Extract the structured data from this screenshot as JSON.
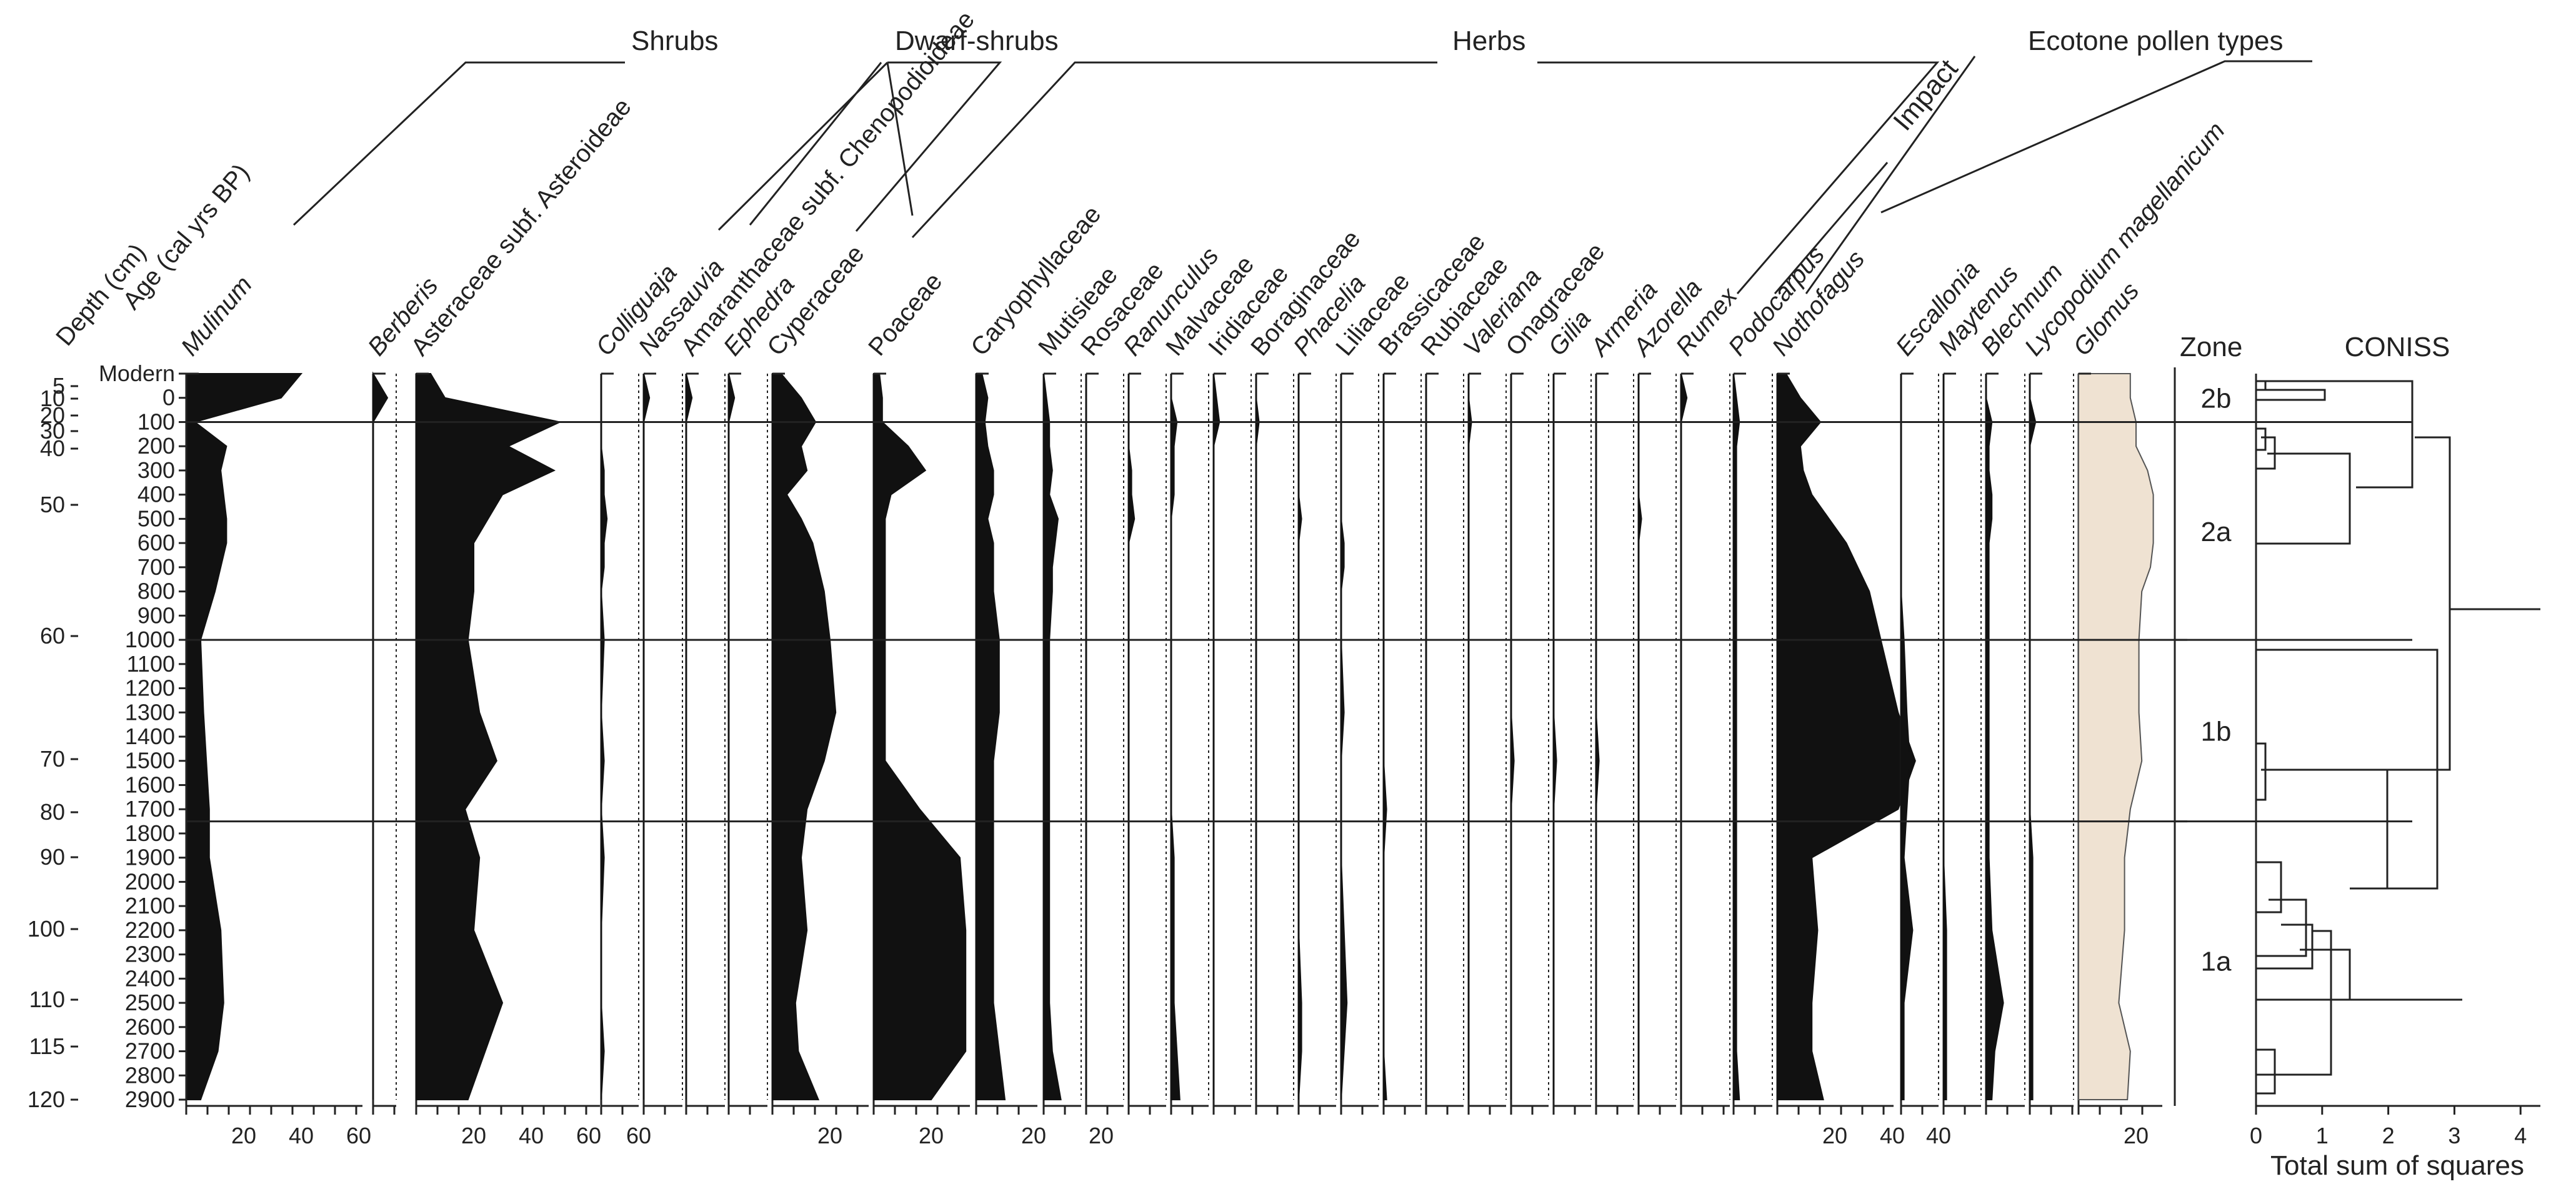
{
  "chart_data": {
    "type": "area",
    "subtype": "pollen-diagram",
    "depth_axis_label": "Depth (cm)",
    "age_axis_label": "Age (cal yrs BP)",
    "depth_ticks": [
      "5",
      "10",
      "20",
      "30",
      "40",
      "50",
      "60",
      "70",
      "80",
      "90",
      "100",
      "110",
      "115",
      "120"
    ],
    "depth_values": [
      5,
      10,
      20,
      30,
      40,
      50,
      60,
      70,
      80,
      90,
      100,
      110,
      115,
      120
    ],
    "age_ticks": [
      "Modern",
      "0",
      "100",
      "200",
      "300",
      "400",
      "500",
      "600",
      "700",
      "800",
      "900",
      "1000",
      "1100",
      "1200",
      "1300",
      "1400",
      "1500",
      "1600",
      "1700",
      "1800",
      "1900",
      "2000",
      "2100",
      "2200",
      "2300",
      "2400",
      "2500",
      "2600",
      "2700",
      "2800",
      "2900"
    ],
    "age_values": [
      -100,
      0,
      100,
      200,
      300,
      400,
      500,
      600,
      700,
      800,
      900,
      1000,
      1100,
      1200,
      1300,
      1400,
      1500,
      1600,
      1700,
      1800,
      1900,
      2000,
      2100,
      2200,
      2300,
      2400,
      2500,
      2600,
      2700,
      2800,
      2900
    ],
    "sample_ages": [
      -100,
      0,
      100,
      200,
      300,
      400,
      500,
      600,
      700,
      800,
      1000,
      1300,
      1500,
      1700,
      1900,
      2200,
      2500,
      2700,
      2900
    ],
    "zone_label": "Zone",
    "zones": [
      {
        "name": "2b",
        "age_top": -100,
        "age_bottom": 100
      },
      {
        "name": "2a",
        "age_top": 100,
        "age_bottom": 1000
      },
      {
        "name": "1b",
        "age_top": 1000,
        "age_bottom": 1750
      },
      {
        "name": "1a",
        "age_top": 1750,
        "age_bottom": 2900
      }
    ],
    "zone_boundary_ages": [
      100,
      1000,
      1750
    ],
    "groups": [
      {
        "name": "Shrubs"
      },
      {
        "name": "Dwarf-shrubs"
      },
      {
        "name": "Herbs"
      },
      {
        "name": "Impact"
      },
      {
        "name": "Ecotone pollen types"
      }
    ],
    "series": [
      {
        "name": "Mulinum",
        "italic": true,
        "max": 60,
        "ticks": [
          "20",
          "40",
          "60"
        ],
        "tick_values": [
          20,
          40,
          60
        ],
        "values": [
          40,
          33,
          3,
          14,
          12,
          13,
          14,
          14,
          12,
          10,
          5,
          6,
          7,
          8,
          8,
          12,
          13,
          11,
          5
        ]
      },
      {
        "name": "Berberis",
        "italic": true,
        "max": 5,
        "ticks": [],
        "tick_values": [],
        "values": [
          0,
          5,
          0,
          0,
          0,
          0,
          0,
          0,
          0,
          0,
          0,
          0,
          0,
          0,
          0,
          0,
          0,
          0,
          0
        ]
      },
      {
        "name": "Asteraceae subf. Asteroideae",
        "italic": false,
        "max": 60,
        "ticks": [
          "20",
          "40",
          "60"
        ],
        "tick_values": [
          20,
          40,
          60
        ],
        "values": [
          5,
          10,
          50,
          32,
          48,
          30,
          25,
          20,
          20,
          20,
          18,
          22,
          28,
          17,
          22,
          20,
          30,
          24,
          18
        ]
      },
      {
        "name": "Colliguaja",
        "italic": true,
        "max": 5,
        "ticks": [
          "60"
        ],
        "tick_values": [
          60
        ],
        "values": [
          0,
          0,
          0,
          0,
          1,
          1,
          2,
          1,
          1,
          0,
          1,
          0,
          1,
          0,
          1,
          0,
          0,
          1,
          0
        ]
      },
      {
        "name": "Nassauvia",
        "italic": true,
        "max": 5,
        "ticks": [],
        "tick_values": [],
        "values": [
          0,
          2,
          0,
          0,
          0,
          0,
          0,
          0,
          0,
          0,
          0,
          0,
          0,
          0,
          0,
          0,
          0,
          0,
          0
        ]
      },
      {
        "name": "Amaranthaceae subf. Chenopodioideae",
        "italic": false,
        "max": 5,
        "ticks": [],
        "tick_values": [],
        "values": [
          0,
          2,
          0,
          0,
          0,
          0,
          0,
          0,
          0,
          0,
          0,
          0,
          0,
          0,
          0,
          0,
          0,
          0,
          0
        ]
      },
      {
        "name": "Ephedra",
        "italic": true,
        "max": 5,
        "ticks": [],
        "tick_values": [],
        "values": [
          0,
          2,
          0,
          0,
          0,
          0,
          0,
          0,
          0,
          0,
          0,
          0,
          0,
          0,
          0,
          0,
          0,
          0,
          0
        ]
      },
      {
        "name": "Cyperaceae",
        "italic": false,
        "max": 30,
        "ticks": [
          "20"
        ],
        "tick_values": [
          20
        ],
        "values": [
          3,
          10,
          15,
          10,
          12,
          5,
          10,
          14,
          16,
          18,
          20,
          22,
          18,
          12,
          10,
          12,
          8,
          9,
          16
        ]
      },
      {
        "name": "Poaceae",
        "italic": false,
        "max": 30,
        "ticks": [
          "20"
        ],
        "tick_values": [
          20
        ],
        "values": [
          2,
          3,
          3,
          12,
          18,
          6,
          4,
          4,
          4,
          4,
          4,
          4,
          4,
          16,
          30,
          32,
          32,
          32,
          20
        ]
      },
      {
        "name": "Caryophyllaceae",
        "italic": false,
        "max": 30,
        "ticks": [
          "20"
        ],
        "tick_values": [
          20
        ],
        "values": [
          2,
          4,
          3,
          4,
          6,
          6,
          4,
          6,
          6,
          6,
          8,
          8,
          6,
          6,
          6,
          6,
          6,
          8,
          10
        ]
      },
      {
        "name": "Mutisieae",
        "italic": false,
        "max": 30,
        "ticks": [
          "20"
        ],
        "tick_values": [
          20
        ],
        "values": [
          0,
          1,
          2,
          2,
          3,
          2,
          5,
          4,
          3,
          3,
          2,
          2,
          2,
          2,
          2,
          2,
          2,
          3,
          6
        ]
      },
      {
        "name": "Rosaceae",
        "italic": false,
        "max": 5,
        "ticks": [],
        "tick_values": [],
        "values": [
          0,
          0,
          0,
          0,
          0,
          0,
          0,
          0,
          0,
          0,
          0,
          0,
          0,
          0,
          0,
          0,
          0,
          0,
          0
        ]
      },
      {
        "name": "Ranunculus",
        "italic": true,
        "max": 5,
        "ticks": [],
        "tick_values": [],
        "values": [
          0,
          0,
          0,
          0,
          1,
          1,
          2,
          0,
          0,
          0,
          0,
          0,
          0,
          0,
          0,
          0,
          0,
          0,
          0
        ]
      },
      {
        "name": "Malvaceae",
        "italic": false,
        "max": 5,
        "ticks": [],
        "tick_values": [],
        "values": [
          0,
          0,
          2,
          1,
          1,
          1,
          0,
          0,
          0,
          0,
          0,
          0,
          0,
          0,
          1,
          1,
          1,
          2,
          3
        ]
      },
      {
        "name": "Iridiaceae",
        "italic": false,
        "max": 5,
        "ticks": [],
        "tick_values": [],
        "values": [
          0,
          1,
          2,
          0,
          0,
          0,
          0,
          0,
          0,
          0,
          0,
          0,
          0,
          0,
          0,
          0,
          0,
          0,
          0
        ]
      },
      {
        "name": "Boraginaceae",
        "italic": false,
        "max": 5,
        "ticks": [],
        "tick_values": [],
        "values": [
          0,
          0,
          1,
          0,
          0,
          0,
          0,
          0,
          0,
          0,
          0,
          0,
          0,
          0,
          0,
          0,
          0,
          0,
          0
        ]
      },
      {
        "name": "Phacelia",
        "italic": true,
        "max": 5,
        "ticks": [],
        "tick_values": [],
        "values": [
          0,
          0,
          0,
          0,
          0,
          0,
          1,
          0,
          0,
          0,
          0,
          0,
          0,
          0,
          0,
          0,
          1,
          1,
          0
        ]
      },
      {
        "name": "Liliaceae",
        "italic": false,
        "max": 5,
        "ticks": [],
        "tick_values": [],
        "values": [
          0,
          0,
          0,
          0,
          0,
          0,
          0,
          1,
          1,
          0,
          0,
          1,
          0,
          0,
          0,
          1,
          2,
          1,
          0
        ]
      },
      {
        "name": "Brassicaceae",
        "italic": false,
        "max": 5,
        "ticks": [],
        "tick_values": [],
        "values": [
          0,
          0,
          0,
          0,
          0,
          0,
          0,
          0,
          0,
          0,
          0,
          0,
          0,
          1,
          0,
          0,
          0,
          0,
          1
        ]
      },
      {
        "name": "Rubiaceae",
        "italic": false,
        "max": 5,
        "ticks": [],
        "tick_values": [],
        "values": [
          0,
          0,
          0,
          0,
          0,
          0,
          0,
          0,
          0,
          0,
          0,
          0,
          0,
          0,
          0,
          0,
          0,
          0,
          0
        ]
      },
      {
        "name": "Valeriana",
        "italic": true,
        "max": 5,
        "ticks": [],
        "tick_values": [],
        "values": [
          0,
          0,
          1,
          0,
          0,
          0,
          0,
          0,
          0,
          0,
          0,
          0,
          0,
          0,
          0,
          0,
          0,
          0,
          0
        ]
      },
      {
        "name": "Onagraceae",
        "italic": false,
        "max": 5,
        "ticks": [],
        "tick_values": [],
        "values": [
          0,
          0,
          0,
          0,
          0,
          0,
          0,
          0,
          0,
          0,
          0,
          0,
          1,
          0,
          0,
          0,
          0,
          0,
          0
        ]
      },
      {
        "name": "Gilia",
        "italic": true,
        "max": 5,
        "ticks": [],
        "tick_values": [],
        "values": [
          0,
          0,
          0,
          0,
          0,
          0,
          0,
          0,
          0,
          0,
          0,
          0,
          1,
          0,
          0,
          0,
          0,
          0,
          0
        ]
      },
      {
        "name": "Armeria",
        "italic": true,
        "max": 5,
        "ticks": [],
        "tick_values": [],
        "values": [
          0,
          0,
          0,
          0,
          0,
          0,
          0,
          0,
          0,
          0,
          0,
          0,
          1,
          0,
          0,
          0,
          0,
          0,
          0
        ]
      },
      {
        "name": "Azorella",
        "italic": true,
        "max": 5,
        "ticks": [],
        "tick_values": [],
        "values": [
          0,
          0,
          0,
          0,
          0,
          0,
          1,
          0,
          0,
          0,
          0,
          0,
          0,
          0,
          0,
          0,
          0,
          0,
          0
        ]
      },
      {
        "name": "Rumex",
        "italic": true,
        "max": 5,
        "ticks": [],
        "tick_values": [],
        "values": [
          0,
          2,
          0,
          0,
          0,
          0,
          0,
          0,
          0,
          0,
          0,
          0,
          0,
          0,
          0,
          0,
          0,
          0,
          0
        ]
      },
      {
        "name": "Podocarpus",
        "italic": true,
        "max": 5,
        "ticks": [],
        "tick_values": [],
        "values": [
          0,
          1,
          2,
          1,
          1,
          1,
          1,
          1,
          1,
          1,
          1,
          1,
          1,
          1,
          1,
          1,
          1,
          1,
          2
        ]
      },
      {
        "name": "Nothofagus",
        "italic": true,
        "max": 40,
        "ticks": [
          "20",
          "40"
        ],
        "tick_values": [
          20,
          40
        ],
        "values": [
          3,
          8,
          15,
          8,
          9,
          12,
          18,
          24,
          28,
          32,
          36,
          42,
          48,
          42,
          12,
          14,
          12,
          12,
          16
        ]
      },
      {
        "name": "Escallonia",
        "italic": true,
        "max": 5,
        "ticks": [
          "40"
        ],
        "tick_values": [
          40
        ],
        "values": [
          0,
          0,
          0,
          0,
          0,
          0,
          0,
          0,
          0,
          0,
          1,
          2,
          3,
          2,
          1,
          4,
          1,
          1,
          1
        ]
      },
      {
        "name": "Maytenus",
        "italic": true,
        "max": 5,
        "ticks": [],
        "tick_values": [],
        "values": [
          0,
          0,
          0,
          0,
          0,
          0,
          0,
          0,
          0,
          0,
          0,
          0,
          0,
          0,
          0,
          1,
          1,
          1,
          1
        ]
      },
      {
        "name": "Blechnum",
        "italic": true,
        "max": 30,
        "ticks": [],
        "tick_values": [],
        "values": [
          0,
          0,
          2,
          1,
          1,
          2,
          2,
          1,
          1,
          1,
          1,
          1,
          1,
          1,
          1,
          2,
          6,
          3,
          2
        ]
      },
      {
        "name": "Lycopodium magellanicum",
        "italic": true,
        "max": 5,
        "ticks": [],
        "tick_values": [],
        "values": [
          0,
          0,
          2,
          0,
          0,
          0,
          0,
          0,
          0,
          0,
          0,
          0,
          0,
          0,
          1,
          1,
          1,
          1,
          1
        ]
      },
      {
        "name": "Glomus",
        "italic": true,
        "max": 30,
        "ticks": [
          "20"
        ],
        "tick_values": [
          20
        ],
        "values": [
          18,
          18,
          20,
          20,
          24,
          26,
          26,
          26,
          25,
          22,
          21,
          21,
          22,
          18,
          16,
          16,
          14,
          18,
          17
        ]
      }
    ],
    "coniss": {
      "title": "CONISS",
      "xlabel": "Total sum of squares",
      "ticks": [
        "0",
        "1",
        "2",
        "3",
        "4"
      ],
      "tick_values": [
        0,
        1,
        2,
        3,
        4
      ],
      "xlim": [
        0,
        4.3
      ]
    }
  },
  "colors": {
    "fill": "#111111",
    "glomus": "#efe2d2",
    "line": "#222222"
  }
}
